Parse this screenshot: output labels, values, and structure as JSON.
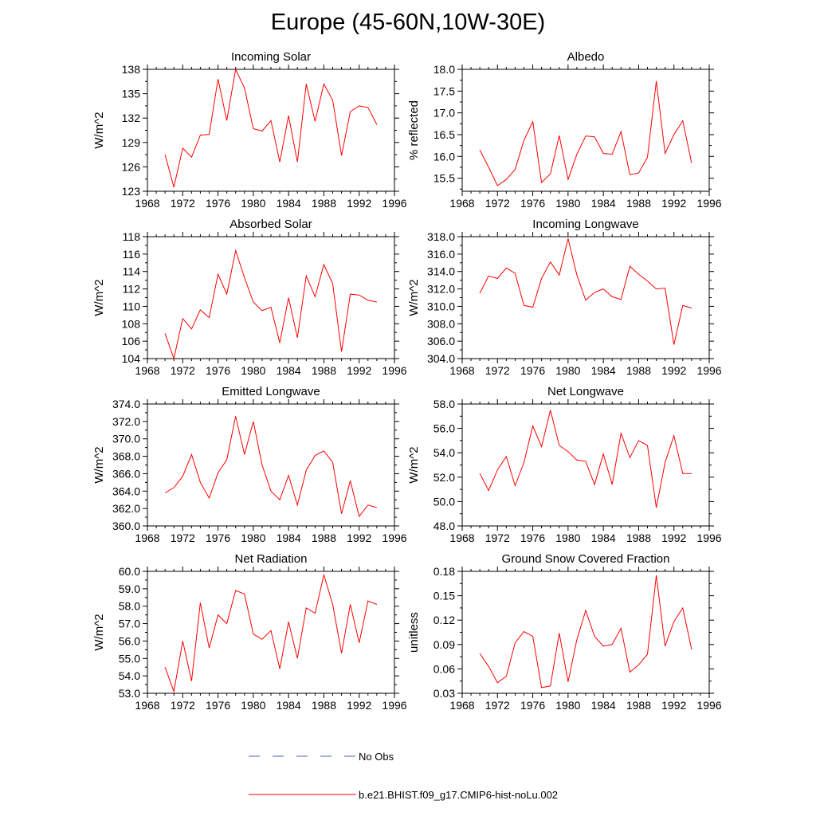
{
  "title": "Europe (45-60N,10W-30E)",
  "legend": [
    {
      "label": "No Obs",
      "color": "#4a5fb8",
      "dash": true
    },
    {
      "label": "b.e21.BHIST.f09_g17.CMIP6-hist-noLu.002",
      "color": "#ff0000",
      "dash": false
    }
  ],
  "chart_data": [
    {
      "type": "line",
      "title": "Incoming Solar",
      "ylabel": "W/m^2",
      "xlim": [
        1968,
        1996
      ],
      "ylim": [
        123,
        138
      ],
      "xticks": [
        1968,
        1972,
        1976,
        1980,
        1984,
        1988,
        1992,
        1996
      ],
      "yticks": [
        123,
        126,
        129,
        132,
        135,
        138
      ],
      "ytick_labels": [
        "123",
        "126",
        "129",
        "132",
        "135",
        "138"
      ],
      "x": [
        1970,
        1971,
        1972,
        1973,
        1974,
        1975,
        1976,
        1977,
        1978,
        1979,
        1980,
        1981,
        1982,
        1983,
        1984,
        1985,
        1986,
        1987,
        1988,
        1989,
        1990,
        1991,
        1992,
        1993,
        1994
      ],
      "series": [
        {
          "values": [
            127.5,
            123.5,
            128.3,
            127.2,
            129.9,
            130.0,
            136.8,
            131.7,
            138.0,
            135.7,
            130.7,
            130.4,
            131.7,
            126.6,
            132.3,
            126.6,
            136.2,
            131.6,
            136.2,
            134.2,
            127.4,
            132.8,
            133.5,
            133.3,
            131.2
          ]
        }
      ]
    },
    {
      "type": "line",
      "title": "Albedo",
      "ylabel": "% reflected",
      "xlim": [
        1968,
        1996
      ],
      "ylim": [
        15.2,
        18.0
      ],
      "xticks": [
        1968,
        1972,
        1976,
        1980,
        1984,
        1988,
        1992,
        1996
      ],
      "yticks": [
        15.5,
        16.0,
        16.5,
        17.0,
        17.5,
        18.0
      ],
      "ytick_labels": [
        "15.5",
        "16.0",
        "16.5",
        "17.0",
        "17.5",
        "18.0"
      ],
      "x": [
        1970,
        1971,
        1972,
        1973,
        1974,
        1975,
        1976,
        1977,
        1978,
        1979,
        1980,
        1981,
        1982,
        1983,
        1984,
        1985,
        1986,
        1987,
        1988,
        1989,
        1990,
        1991,
        1992,
        1993,
        1994
      ],
      "series": [
        {
          "values": [
            16.15,
            15.75,
            15.33,
            15.47,
            15.7,
            16.37,
            16.8,
            15.4,
            15.6,
            16.48,
            15.47,
            16.05,
            16.47,
            16.45,
            16.07,
            16.05,
            16.57,
            15.58,
            15.62,
            15.98,
            17.73,
            16.07,
            16.5,
            16.82,
            15.85
          ]
        }
      ]
    },
    {
      "type": "line",
      "title": "Absorbed Solar",
      "ylabel": "W/m^2",
      "xlim": [
        1968,
        1996
      ],
      "ylim": [
        104,
        118
      ],
      "xticks": [
        1968,
        1972,
        1976,
        1980,
        1984,
        1988,
        1992,
        1996
      ],
      "yticks": [
        104,
        106,
        108,
        110,
        112,
        114,
        116,
        118
      ],
      "ytick_labels": [
        "104",
        "106",
        "108",
        "110",
        "112",
        "114",
        "116",
        "118"
      ],
      "x": [
        1970,
        1971,
        1972,
        1973,
        1974,
        1975,
        1976,
        1977,
        1978,
        1979,
        1980,
        1981,
        1982,
        1983,
        1984,
        1985,
        1986,
        1987,
        1988,
        1989,
        1990,
        1991,
        1992,
        1993,
        1994
      ],
      "series": [
        {
          "values": [
            106.9,
            104.0,
            108.6,
            107.4,
            109.6,
            108.7,
            113.7,
            111.4,
            116.4,
            113.3,
            110.5,
            109.5,
            109.9,
            105.8,
            111.0,
            106.4,
            113.5,
            111.1,
            114.8,
            112.6,
            104.8,
            111.4,
            111.3,
            110.7,
            110.5
          ]
        }
      ]
    },
    {
      "type": "line",
      "title": "Incoming Longwave",
      "ylabel": "W/m^2",
      "xlim": [
        1968,
        1996
      ],
      "ylim": [
        304,
        318
      ],
      "xticks": [
        1968,
        1972,
        1976,
        1980,
        1984,
        1988,
        1992,
        1996
      ],
      "yticks": [
        304,
        306,
        308,
        310,
        312,
        314,
        316,
        318
      ],
      "ytick_labels": [
        "304.0",
        "306.0",
        "308.0",
        "310.0",
        "312.0",
        "314.0",
        "316.0",
        "318.0"
      ],
      "x": [
        1970,
        1971,
        1972,
        1973,
        1974,
        1975,
        1976,
        1977,
        1978,
        1979,
        1980,
        1981,
        1982,
        1983,
        1984,
        1985,
        1986,
        1987,
        1988,
        1989,
        1990,
        1991,
        1992,
        1993,
        1994
      ],
      "series": [
        {
          "values": [
            311.5,
            313.5,
            313.2,
            314.4,
            313.8,
            310.1,
            309.9,
            313.2,
            315.1,
            313.6,
            317.8,
            313.6,
            310.7,
            311.6,
            312.0,
            311.1,
            310.8,
            314.6,
            313.7,
            312.9,
            312.0,
            312.1,
            305.6,
            310.1,
            309.8
          ]
        }
      ]
    },
    {
      "type": "line",
      "title": "Emitted Longwave",
      "ylabel": "W/m^2",
      "xlim": [
        1968,
        1996
      ],
      "ylim": [
        360,
        374
      ],
      "xticks": [
        1968,
        1972,
        1976,
        1980,
        1984,
        1988,
        1992,
        1996
      ],
      "yticks": [
        360,
        362,
        364,
        366,
        368,
        370,
        372,
        374
      ],
      "ytick_labels": [
        "360.0",
        "362.0",
        "364.0",
        "366.0",
        "368.0",
        "370.0",
        "372.0",
        "374.0"
      ],
      "x": [
        1970,
        1971,
        1972,
        1973,
        1974,
        1975,
        1976,
        1977,
        1978,
        1979,
        1980,
        1981,
        1982,
        1983,
        1984,
        1985,
        1986,
        1987,
        1988,
        1989,
        1990,
        1991,
        1992,
        1993,
        1994
      ],
      "series": [
        {
          "values": [
            363.8,
            364.4,
            365.7,
            368.2,
            365.0,
            363.2,
            366.1,
            367.6,
            372.6,
            368.2,
            372.0,
            367.0,
            364.0,
            363.0,
            365.8,
            362.4,
            366.4,
            368.1,
            368.6,
            367.3,
            361.4,
            365.2,
            361.1,
            362.4,
            362.1
          ]
        }
      ]
    },
    {
      "type": "line",
      "title": "Net Longwave",
      "ylabel": "W/m^2",
      "xlim": [
        1968,
        1996
      ],
      "ylim": [
        48,
        58
      ],
      "xticks": [
        1968,
        1972,
        1976,
        1980,
        1984,
        1988,
        1992,
        1996
      ],
      "yticks": [
        48,
        50,
        52,
        54,
        56,
        58
      ],
      "ytick_labels": [
        "48.0",
        "50.0",
        "52.0",
        "54.0",
        "56.0",
        "58.0"
      ],
      "x": [
        1970,
        1971,
        1972,
        1973,
        1974,
        1975,
        1976,
        1977,
        1978,
        1979,
        1980,
        1981,
        1982,
        1983,
        1984,
        1985,
        1986,
        1987,
        1988,
        1989,
        1990,
        1991,
        1992,
        1993,
        1994
      ],
      "series": [
        {
          "values": [
            52.3,
            50.9,
            52.6,
            53.7,
            51.3,
            53.2,
            56.2,
            54.5,
            57.5,
            54.6,
            54.1,
            53.4,
            53.3,
            51.4,
            53.9,
            51.4,
            55.6,
            53.6,
            55.0,
            54.6,
            49.5,
            53.2,
            55.4,
            52.3,
            52.3
          ]
        }
      ]
    },
    {
      "type": "line",
      "title": "Net Radiation",
      "ylabel": "W/m^2",
      "xlim": [
        1968,
        1996
      ],
      "ylim": [
        53,
        60
      ],
      "xticks": [
        1968,
        1972,
        1976,
        1980,
        1984,
        1988,
        1992,
        1996
      ],
      "yticks": [
        53,
        54,
        55,
        56,
        57,
        58,
        59,
        60
      ],
      "ytick_labels": [
        "53.0",
        "54.0",
        "55.0",
        "56.0",
        "57.0",
        "58.0",
        "59.0",
        "60.0"
      ],
      "x": [
        1970,
        1971,
        1972,
        1973,
        1974,
        1975,
        1976,
        1977,
        1978,
        1979,
        1980,
        1981,
        1982,
        1983,
        1984,
        1985,
        1986,
        1987,
        1988,
        1989,
        1990,
        1991,
        1992,
        1993,
        1994
      ],
      "series": [
        {
          "values": [
            54.5,
            53.1,
            56.0,
            53.7,
            58.2,
            55.6,
            57.5,
            57.0,
            58.9,
            58.7,
            56.4,
            56.1,
            56.6,
            54.4,
            57.1,
            55.0,
            57.9,
            57.6,
            59.8,
            58.1,
            55.3,
            58.1,
            55.9,
            58.3,
            58.1
          ]
        }
      ]
    },
    {
      "type": "line",
      "title": "Ground Snow Covered Fraction",
      "ylabel": "unitless",
      "xlim": [
        1968,
        1996
      ],
      "ylim": [
        0.03,
        0.18
      ],
      "xticks": [
        1968,
        1972,
        1976,
        1980,
        1984,
        1988,
        1992,
        1996
      ],
      "yticks": [
        0.03,
        0.06,
        0.09,
        0.12,
        0.15,
        0.18
      ],
      "ytick_labels": [
        "0.03",
        "0.06",
        "0.09",
        "0.12",
        "0.15",
        "0.18"
      ],
      "x": [
        1970,
        1971,
        1972,
        1973,
        1974,
        1975,
        1976,
        1977,
        1978,
        1979,
        1980,
        1981,
        1982,
        1983,
        1984,
        1985,
        1986,
        1987,
        1988,
        1989,
        1990,
        1991,
        1992,
        1993,
        1994
      ],
      "series": [
        {
          "values": [
            0.079,
            0.063,
            0.043,
            0.051,
            0.092,
            0.106,
            0.1,
            0.037,
            0.039,
            0.104,
            0.044,
            0.096,
            0.132,
            0.1,
            0.088,
            0.09,
            0.11,
            0.056,
            0.065,
            0.078,
            0.175,
            0.088,
            0.118,
            0.135,
            0.084
          ]
        }
      ]
    }
  ]
}
